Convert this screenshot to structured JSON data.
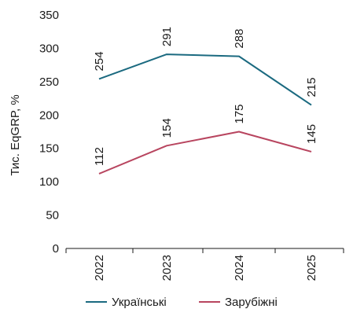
{
  "chart_data": {
    "type": "line",
    "title": "",
    "xlabel": "",
    "ylabel": "Тис. EqGRP, %",
    "categories": [
      "2022",
      "2023",
      "2024",
      "2025"
    ],
    "ylim": [
      0,
      350
    ],
    "yticks": [
      "0",
      "50",
      "100",
      "150",
      "200",
      "250",
      "300",
      "350"
    ],
    "grid": false,
    "legend": "bottom",
    "series": [
      {
        "name": "Українські",
        "color": "#1b6a80",
        "values": [
          254,
          291,
          288,
          215
        ],
        "labels": [
          "254",
          "291",
          "288",
          "215"
        ]
      },
      {
        "name": "Зарубіжні",
        "color": "#b8455f",
        "values": [
          112,
          154,
          175,
          145
        ],
        "labels": [
          "112",
          "154",
          "175",
          "145"
        ]
      }
    ]
  }
}
